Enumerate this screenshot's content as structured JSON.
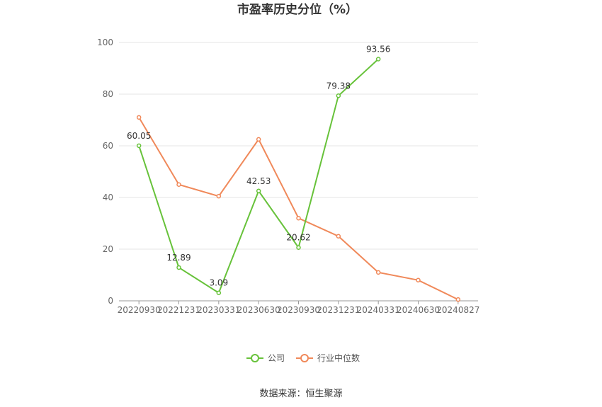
{
  "chart_data": {
    "type": "line",
    "title": "市盈率历史分位（%）",
    "xlabel": "",
    "ylabel": "",
    "categories": [
      "20220930",
      "20221231",
      "20230331",
      "20230630",
      "20230930",
      "20231231",
      "20240331",
      "20240630",
      "20240827"
    ],
    "ylim": [
      0,
      100
    ],
    "yticks": [
      0,
      20,
      40,
      60,
      80,
      100
    ],
    "grid": true,
    "legend_position": "bottom",
    "series": [
      {
        "name": "公司",
        "color": "#67c23a",
        "values": [
          60.05,
          12.89,
          3.09,
          42.53,
          20.62,
          79.38,
          93.56,
          null,
          null
        ],
        "labels": [
          "60.05",
          "12.89",
          "3.09",
          "42.53",
          "20.62",
          "79.38",
          "93.56",
          null,
          null
        ]
      },
      {
        "name": "行业中位数",
        "color": "#f0895a",
        "values": [
          71,
          45,
          40.5,
          62.5,
          32,
          25,
          11,
          8,
          0.5
        ]
      }
    ],
    "source": "数据来源：恒生聚源"
  }
}
